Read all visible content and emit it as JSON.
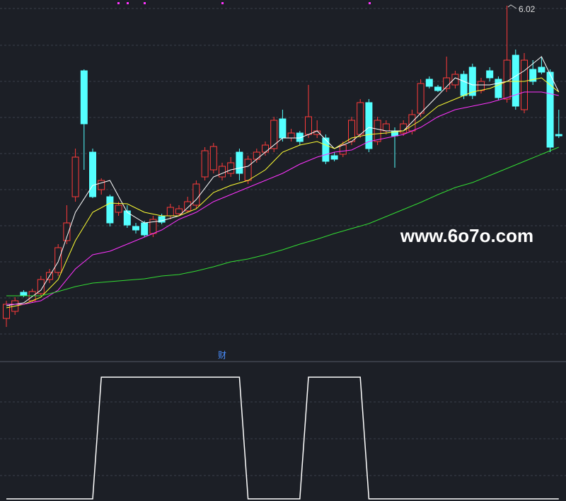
{
  "chart_data": [
    {
      "type": "candlestick",
      "ylim": [
        1.2,
        6.1
      ],
      "up_color": "#ff3b3b",
      "down_color": "#54ffff",
      "open": [
        1.6,
        1.7,
        1.97,
        1.85,
        1.95,
        2.15,
        2.25,
        2.7,
        3.32,
        5.1,
        3.95,
        3.42,
        3.32,
        3.1,
        3.12,
        2.9,
        2.95,
        2.8,
        3.04,
        3.05,
        3.08,
        3.12,
        3.2,
        3.6,
        3.7,
        3.6,
        3.65,
        3.95,
        3.55,
        3.85,
        3.95,
        4.0,
        4.42,
        4.15,
        4.22,
        4.2,
        4.2,
        4.15,
        3.9,
        3.92,
        4.1,
        4.2,
        4.65,
        4.1,
        4.25,
        4.25,
        4.22,
        4.25,
        4.5,
        4.98,
        4.87,
        4.85,
        4.9,
        5.05,
        5.15,
        4.82,
        5.1,
        4.98,
        4.7,
        5.32,
        4.55,
        5.12,
        5.15,
        5.08,
        4.2
      ],
      "high": [
        1.85,
        1.9,
        2.0,
        2.02,
        2.2,
        2.3,
        2.65,
        3.2,
        4.0,
        5.12,
        4.0,
        3.58,
        3.35,
        3.25,
        3.2,
        2.95,
        2.98,
        3.05,
        3.08,
        3.22,
        3.2,
        3.32,
        3.55,
        4.02,
        4.08,
        3.8,
        3.88,
        4.0,
        3.9,
        4.0,
        4.1,
        4.45,
        4.55,
        4.28,
        4.25,
        4.9,
        4.4,
        4.2,
        3.95,
        4.1,
        4.45,
        4.7,
        4.7,
        4.45,
        4.4,
        4.3,
        4.4,
        4.55,
        4.98,
        5.02,
        4.9,
        5.3,
        5.1,
        5.1,
        5.2,
        5.0,
        5.15,
        5.02,
        6.02,
        5.4,
        5.35,
        5.25,
        5.3,
        5.12,
        4.55
      ],
      "low": [
        1.48,
        1.65,
        1.9,
        1.82,
        1.92,
        2.1,
        2.2,
        2.65,
        3.25,
        3.7,
        3.3,
        3.35,
        2.9,
        3.05,
        2.88,
        2.8,
        2.75,
        2.75,
        2.93,
        3.0,
        3.05,
        3.1,
        3.15,
        3.55,
        3.65,
        3.55,
        3.6,
        3.55,
        3.5,
        3.8,
        3.9,
        3.95,
        4.1,
        4.1,
        4.05,
        4.15,
        4.15,
        3.78,
        3.82,
        3.88,
        4.05,
        4.15,
        3.95,
        4.05,
        4.2,
        3.73,
        4.18,
        4.2,
        4.45,
        4.85,
        4.8,
        4.8,
        4.85,
        4.7,
        4.7,
        4.78,
        4.95,
        4.68,
        4.65,
        4.55,
        4.5,
        4.9,
        5.05,
        3.95,
        4.15
      ],
      "close": [
        1.8,
        1.85,
        1.93,
        1.98,
        2.15,
        2.25,
        2.6,
        2.95,
        3.88,
        4.35,
        3.32,
        3.55,
        2.95,
        3.2,
        2.92,
        2.85,
        2.78,
        3.0,
        2.96,
        3.17,
        3.15,
        3.25,
        3.5,
        3.97,
        4.03,
        3.75,
        3.8,
        3.65,
        3.85,
        3.95,
        4.05,
        4.4,
        4.15,
        4.22,
        4.1,
        4.45,
        4.25,
        3.82,
        3.85,
        4.05,
        4.4,
        4.65,
        4.0,
        4.4,
        4.35,
        4.18,
        4.35,
        4.48,
        4.92,
        4.88,
        4.82,
        5.0,
        5.05,
        4.75,
        4.75,
        4.95,
        5.0,
        4.72,
        5.25,
        4.6,
        5.25,
        4.95,
        5.08,
        4.02,
        4.18
      ],
      "series": [
        {
          "color": "#ffffff",
          "x": [
            0,
            2,
            4,
            6,
            8,
            10,
            12,
            14,
            16,
            18,
            20,
            22,
            24,
            26,
            28,
            30,
            32,
            34,
            36,
            38,
            40,
            42,
            44,
            46,
            48,
            50,
            52,
            54,
            56,
            58,
            60,
            62,
            64
          ],
          "values": [
            1.78,
            1.82,
            2.0,
            2.4,
            3.1,
            3.48,
            3.55,
            3.1,
            2.95,
            2.98,
            3.05,
            3.28,
            3.6,
            3.7,
            3.75,
            3.95,
            4.15,
            4.15,
            4.25,
            4.0,
            4.1,
            4.3,
            4.25,
            4.25,
            4.5,
            4.75,
            5.0,
            4.9,
            4.9,
            4.95,
            5.1,
            5.3,
            4.8
          ]
        },
        {
          "color": "#ffff33",
          "x": [
            0,
            2,
            4,
            6,
            8,
            10,
            12,
            14,
            16,
            18,
            20,
            22,
            24,
            26,
            28,
            30,
            32,
            34,
            36,
            38,
            40,
            42,
            44,
            46,
            48,
            50,
            52,
            54,
            56,
            58,
            60,
            62,
            64
          ],
          "values": [
            1.75,
            1.8,
            1.9,
            2.15,
            2.7,
            3.1,
            3.23,
            3.22,
            3.1,
            3.05,
            3.05,
            3.15,
            3.38,
            3.48,
            3.55,
            3.7,
            3.95,
            4.05,
            4.1,
            4.0,
            4.15,
            4.2,
            4.22,
            4.25,
            4.4,
            4.6,
            4.7,
            4.8,
            4.85,
            4.95,
            4.95,
            5.0,
            4.8
          ]
        },
        {
          "color": "#ff33ff",
          "x": [
            0,
            2,
            4,
            6,
            8,
            10,
            12,
            14,
            16,
            18,
            20,
            22,
            24,
            26,
            28,
            30,
            32,
            34,
            36,
            38,
            40,
            42,
            44,
            46,
            48,
            50,
            52,
            54,
            56,
            58,
            60,
            62,
            64
          ],
          "values": [
            1.8,
            1.8,
            1.85,
            2.0,
            2.3,
            2.5,
            2.55,
            2.65,
            2.75,
            2.85,
            3.0,
            3.1,
            3.25,
            3.35,
            3.45,
            3.55,
            3.65,
            3.78,
            3.88,
            3.95,
            3.98,
            4.1,
            4.15,
            4.2,
            4.3,
            4.45,
            4.55,
            4.6,
            4.65,
            4.72,
            4.8,
            4.8,
            4.75
          ]
        },
        {
          "color": "#33dd33",
          "x": [
            0,
            2,
            4,
            6,
            8,
            10,
            12,
            14,
            16,
            18,
            20,
            22,
            24,
            26,
            28,
            30,
            32,
            34,
            36,
            38,
            40,
            42,
            44,
            46,
            48,
            50,
            52,
            54,
            56,
            58,
            60,
            62,
            64
          ],
          "values": [
            1.92,
            1.92,
            1.92,
            1.98,
            2.05,
            2.1,
            2.12,
            2.14,
            2.16,
            2.2,
            2.22,
            2.27,
            2.33,
            2.4,
            2.44,
            2.5,
            2.57,
            2.65,
            2.72,
            2.8,
            2.87,
            2.94,
            3.04,
            3.14,
            3.24,
            3.35,
            3.45,
            3.52,
            3.62,
            3.72,
            3.82,
            3.92,
            4.02
          ]
        }
      ],
      "watermark": "www.6o7o.com"
    },
    {
      "type": "line",
      "title": "财",
      "ylim": [
        0,
        1
      ],
      "color": "#ffffff",
      "values": [
        0,
        0,
        0,
        0,
        0,
        0,
        0,
        0,
        0,
        0,
        0,
        1,
        1,
        1,
        1,
        1,
        1,
        1,
        1,
        1,
        1,
        1,
        1,
        1,
        1,
        1,
        1,
        1,
        0,
        0,
        0,
        0,
        0,
        0,
        0,
        1,
        1,
        1,
        1,
        1,
        1,
        1,
        0,
        0,
        0,
        0,
        0,
        0,
        0,
        0,
        0,
        0,
        0,
        0,
        0,
        0,
        0,
        0,
        0,
        0,
        0,
        0,
        0,
        0,
        0
      ]
    }
  ]
}
